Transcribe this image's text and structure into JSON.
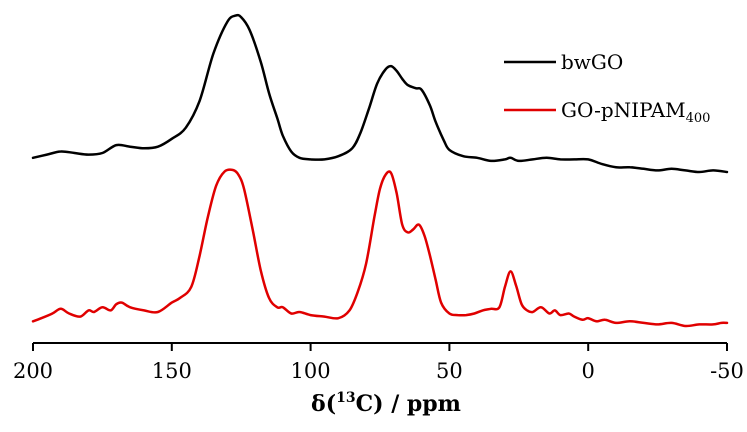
{
  "chart_data": {
    "type": "line",
    "title": "",
    "xlabel": "δ(13C) / ppm",
    "xlabel_parts": {
      "pre": "δ(",
      "sup": "13",
      "post": "C) / ppm"
    },
    "ylabel": "",
    "xlim": [
      200,
      -50
    ],
    "x_reversed": true,
    "x_ticks": [
      200,
      150,
      100,
      50,
      0,
      -50
    ],
    "y_ticks_shown": false,
    "grid": false,
    "legend_position": "top-right",
    "series": [
      {
        "name": "bwGO",
        "name_parts": {
          "base": "bwGO",
          "sub": ""
        },
        "color": "#000000",
        "x": [
          200,
          195,
          190,
          185,
          180,
          175,
          170,
          165,
          160,
          155,
          150,
          145,
          140,
          135,
          130,
          127,
          125,
          122,
          118,
          115,
          112,
          110,
          107,
          104,
          100,
          95,
          90,
          85,
          82,
          79,
          76,
          73,
          71,
          69,
          67,
          65,
          62,
          60,
          57,
          55,
          52,
          50,
          45,
          40,
          35,
          30,
          28,
          25,
          20,
          15,
          10,
          5,
          0,
          -5,
          -10,
          -15,
          -20,
          -25,
          -30,
          -35,
          -40,
          -45,
          -50
        ],
        "y": [
          0.09,
          0.11,
          0.13,
          0.12,
          0.11,
          0.12,
          0.17,
          0.16,
          0.15,
          0.16,
          0.21,
          0.28,
          0.45,
          0.75,
          0.95,
          0.99,
          0.98,
          0.9,
          0.7,
          0.5,
          0.34,
          0.23,
          0.13,
          0.09,
          0.08,
          0.08,
          0.1,
          0.15,
          0.25,
          0.4,
          0.56,
          0.65,
          0.67,
          0.64,
          0.59,
          0.55,
          0.53,
          0.52,
          0.42,
          0.32,
          0.2,
          0.14,
          0.1,
          0.09,
          0.07,
          0.08,
          0.09,
          0.07,
          0.08,
          0.09,
          0.08,
          0.08,
          0.08,
          0.05,
          0.03,
          0.03,
          0.02,
          0.01,
          0.02,
          0.01,
          0.0,
          0.01,
          0.0
        ]
      },
      {
        "name": "GO-pNIPAM400",
        "name_parts": {
          "base": "GO-pNIPAM",
          "sub": "400"
        },
        "color": "#e00000",
        "x": [
          200,
          197,
          193,
          190,
          187,
          183,
          180,
          178,
          175,
          172,
          170,
          168,
          165,
          160,
          155,
          150,
          147,
          143,
          140,
          137,
          134,
          131,
          128,
          126,
          124,
          121,
          118,
          115,
          112,
          110,
          107,
          104,
          100,
          95,
          90,
          86,
          83,
          80,
          77,
          75,
          73,
          71,
          69,
          67,
          65,
          63,
          61,
          59,
          57,
          55,
          53,
          50,
          47,
          44,
          41,
          38,
          35,
          32,
          30,
          28,
          26,
          24,
          22,
          20,
          17,
          14,
          12,
          10,
          7,
          5,
          2,
          0,
          -3,
          -6,
          -10,
          -15,
          -20,
          -25,
          -30,
          -35,
          -40,
          -45,
          -48,
          -50
        ],
        "y": [
          0.03,
          0.05,
          0.08,
          0.11,
          0.08,
          0.06,
          0.1,
          0.09,
          0.12,
          0.1,
          0.14,
          0.15,
          0.12,
          0.1,
          0.09,
          0.15,
          0.18,
          0.25,
          0.45,
          0.7,
          0.9,
          0.99,
          1.0,
          0.97,
          0.88,
          0.63,
          0.36,
          0.18,
          0.12,
          0.12,
          0.08,
          0.09,
          0.07,
          0.06,
          0.05,
          0.1,
          0.22,
          0.4,
          0.7,
          0.88,
          0.97,
          0.98,
          0.85,
          0.65,
          0.6,
          0.62,
          0.65,
          0.58,
          0.45,
          0.3,
          0.15,
          0.08,
          0.07,
          0.07,
          0.08,
          0.1,
          0.11,
          0.12,
          0.25,
          0.35,
          0.26,
          0.14,
          0.1,
          0.09,
          0.12,
          0.08,
          0.1,
          0.07,
          0.08,
          0.06,
          0.04,
          0.05,
          0.03,
          0.04,
          0.02,
          0.03,
          0.02,
          0.01,
          0.02,
          0.0,
          0.01,
          0.01,
          0.02,
          0.02
        ]
      }
    ]
  }
}
